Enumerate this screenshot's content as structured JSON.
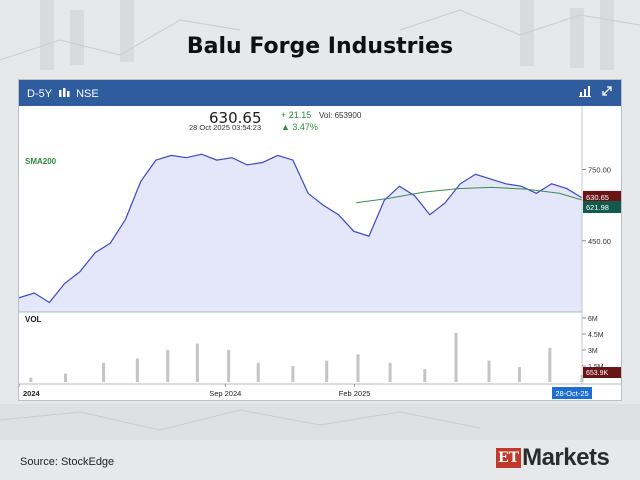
{
  "page": {
    "title": "Balu Forge Industries",
    "source": "Source:  StockEdge",
    "logo_prefix": "ET",
    "logo_text": "Markets"
  },
  "toolbar": {
    "interval": "D-5Y",
    "exchange": "NSE",
    "icons": [
      "candlestick-icon",
      "bar-chart-icon",
      "expand-icon"
    ]
  },
  "quote": {
    "price": "630.65",
    "change": "+ 21.15",
    "volume": "Vol: 653900",
    "datetime": "28 Oct 2025 03:54:23",
    "change_pct": "▲ 3.47%"
  },
  "colors": {
    "price_line": "#3a48c8",
    "price_fill": "#e4e6fa",
    "sma": "#3f8a52",
    "volume": "#c4c4c4",
    "price_badge": "#6b1418",
    "sma_badge": "#125a4c",
    "date_badge": "#1e6fd0",
    "toolbar": "#2f5c9e",
    "change_up": "#2e8b3e"
  },
  "chart_data": {
    "type": "line",
    "series": [
      {
        "name": "",
        "x": [
          "2024-01-01",
          "2024-01-19",
          "2024-02-06",
          "2024-02-24",
          "2024-03-13",
          "2024-03-31",
          "2024-04-18",
          "2024-05-06",
          "2024-05-24",
          "2024-06-11",
          "2024-06-29",
          "2024-07-17",
          "2024-08-04",
          "2024-08-22",
          "2024-09-09",
          "2024-09-27",
          "2024-10-15",
          "2024-11-02",
          "2024-11-20",
          "2024-12-08",
          "2024-12-26",
          "2025-01-13",
          "2025-01-31",
          "2025-02-18",
          "2025-03-08",
          "2025-03-26",
          "2025-04-13",
          "2025-05-01",
          "2025-05-19",
          "2025-06-06",
          "2025-06-24",
          "2025-07-12",
          "2025-07-30",
          "2025-08-17",
          "2025-09-04",
          "2025-09-22",
          "2025-10-10",
          "2025-10-28"
        ],
        "values": [
          210,
          230,
          190,
          270,
          320,
          400,
          440,
          540,
          700,
          790,
          810,
          800,
          815,
          790,
          800,
          770,
          780,
          810,
          790,
          650,
          600,
          560,
          490,
          470,
          620,
          680,
          640,
          560,
          610,
          690,
          730,
          710,
          690,
          680,
          650,
          690,
          670,
          630.65
        ]
      },
      {
        "name": "SMA200",
        "x": [
          "2025-02-03",
          "2025-03-15",
          "2025-04-24",
          "2025-06-03",
          "2025-07-13",
          "2025-08-22",
          "2025-10-01",
          "2025-10-28"
        ],
        "values": [
          610,
          630,
          655,
          670,
          675,
          668,
          650,
          621.98
        ]
      }
    ],
    "volume": {
      "name": "VOL",
      "x": [
        "2024-01-15",
        "2024-02-25",
        "2024-04-10",
        "2024-05-20",
        "2024-06-25",
        "2024-07-30",
        "2024-09-05",
        "2024-10-10",
        "2024-11-20",
        "2024-12-30",
        "2025-02-05",
        "2025-03-15",
        "2025-04-25",
        "2025-06-01",
        "2025-07-10",
        "2025-08-15",
        "2025-09-20",
        "2025-10-28"
      ],
      "values": [
        0.4,
        0.8,
        1.8,
        2.2,
        3.0,
        3.6,
        3.0,
        1.8,
        1.5,
        2.0,
        2.6,
        1.8,
        1.2,
        4.6,
        2.0,
        1.4,
        3.2,
        0.6539
      ],
      "unit": "M",
      "last_label": "653.9K"
    },
    "price_labels": {
      "last": "630.65",
      "sma": "621.98"
    },
    "y_ticks": [
      "750.00",
      "450.00"
    ],
    "ylim": [
      150,
      900
    ],
    "volume_ticks": [
      "6M",
      "4.5M",
      "3M",
      "1.5M"
    ],
    "volume_ylim": [
      0,
      6
    ],
    "x_ticks": [
      "2024",
      "Sep 2024",
      "Feb 2025"
    ],
    "x_tick_dates": [
      "2024-01-01",
      "2024-09-01",
      "2025-02-01"
    ],
    "x_range": [
      "2024-01-01",
      "2025-10-28"
    ],
    "last_date_label": "28-Oct-25",
    "grid": false
  }
}
